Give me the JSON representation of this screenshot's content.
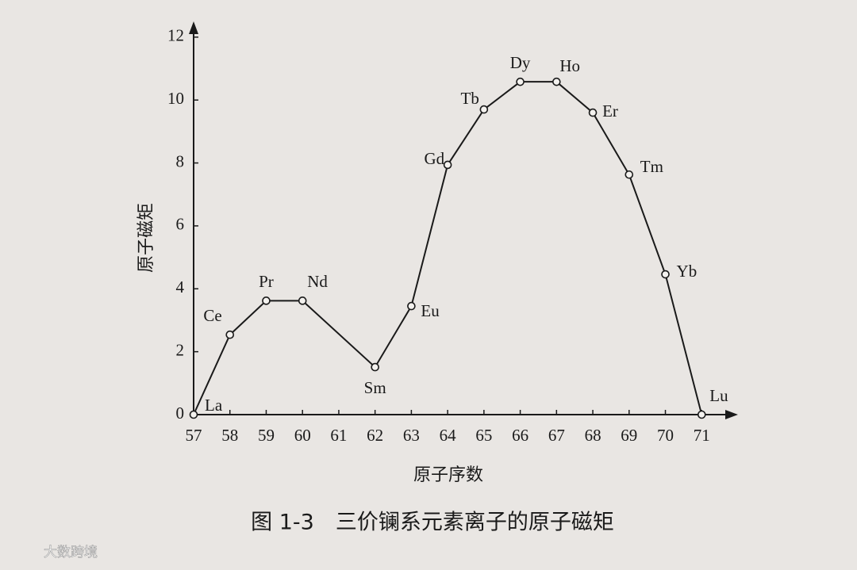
{
  "chart_data": {
    "type": "line",
    "xlabel": "原子序数",
    "ylabel": "原子磁矩",
    "caption": "图 1-3　三价镧系元素离子的原子磁矩",
    "watermark": "大数跨境",
    "x": [
      57,
      58,
      59,
      60,
      62,
      63,
      64,
      65,
      66,
      67,
      68,
      69,
      70,
      71
    ],
    "point_labels": [
      "La",
      "Ce",
      "Pr",
      "Nd",
      "Sm",
      "Eu",
      "Gd",
      "Tb",
      "Dy",
      "Ho",
      "Er",
      "Tm",
      "Yb",
      "Lu"
    ],
    "values": [
      0,
      2.54,
      3.62,
      3.62,
      1.51,
      3.45,
      7.94,
      9.7,
      10.58,
      10.58,
      9.6,
      7.63,
      4.46,
      0
    ],
    "color": "#1a1a1a",
    "xlim": [
      57,
      72
    ],
    "ylim": [
      0,
      12.5
    ],
    "xticks": [
      57,
      58,
      59,
      60,
      61,
      62,
      63,
      64,
      65,
      66,
      67,
      68,
      69,
      70,
      71
    ],
    "yticks": [
      0,
      2,
      4,
      6,
      8,
      10,
      12
    ]
  }
}
